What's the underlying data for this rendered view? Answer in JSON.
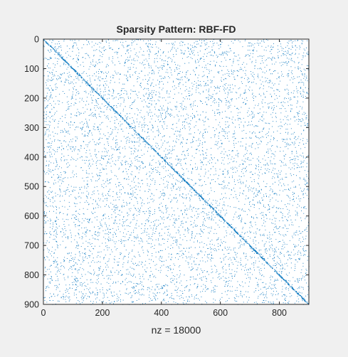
{
  "chart_data": {
    "type": "scatter",
    "title": "Sparsity Pattern: RBF-FD",
    "xlabel": "nz = 18000",
    "ylabel": "",
    "xlim": [
      0,
      900
    ],
    "ylim": [
      900,
      0
    ],
    "y_axis_reversed": true,
    "xticks": [
      0,
      200,
      400,
      600,
      800
    ],
    "yticks": [
      0,
      100,
      200,
      300,
      400,
      500,
      600,
      700,
      800,
      900
    ],
    "matrix_size": 900,
    "nnz": 18000,
    "pattern": "dense diagonal band with random off-diagonal nonzeros",
    "marker_color": "#0072bd",
    "grid": false
  },
  "colors": {
    "figure_background": "#f0f0f0",
    "axes_background": "#ffffff",
    "axes_edge": "#262626",
    "marker": "#0072bd"
  }
}
